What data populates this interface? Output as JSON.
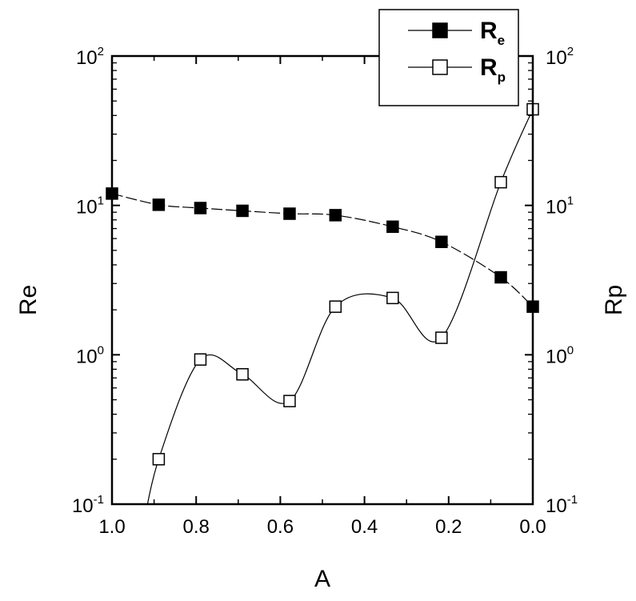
{
  "chart_data": {
    "type": "line",
    "xlabel": "A",
    "ylabel_left": "Re",
    "ylabel_right": "Rp",
    "xlim": [
      1.0,
      0.0
    ],
    "x_reversed": true,
    "ylim": [
      0.1,
      100
    ],
    "y_scale": "log",
    "x_ticks": [
      "1.0",
      "0.8",
      "0.6",
      "0.4",
      "0.2",
      "0.0"
    ],
    "y_ticks": [
      {
        "base": "10",
        "exp": "-1"
      },
      {
        "base": "10",
        "exp": "0"
      },
      {
        "base": "10",
        "exp": "1"
      },
      {
        "base": "10",
        "exp": "2"
      }
    ],
    "legend": {
      "position": "top-right",
      "entries": [
        {
          "base": "R",
          "sub": "e",
          "marker": "filled-square"
        },
        {
          "base": "R",
          "sub": "p",
          "marker": "open-square"
        }
      ]
    },
    "series": [
      {
        "id": "Re",
        "marker": "filled-square",
        "curve": "dashed",
        "x": [
          1.0,
          0.889,
          0.79,
          0.69,
          0.578,
          0.469,
          0.333,
          0.217,
          0.076,
          0.0
        ],
        "y": [
          12,
          10.1,
          9.6,
          9.2,
          8.8,
          8.6,
          7.2,
          5.7,
          3.3,
          2.1
        ]
      },
      {
        "id": "Rp",
        "marker": "open-square",
        "curve": "solid",
        "x": [
          0.889,
          0.79,
          0.69,
          0.578,
          0.469,
          0.333,
          0.217,
          0.076,
          0.0
        ],
        "y": [
          0.2,
          0.93,
          0.74,
          0.49,
          2.1,
          2.4,
          1.3,
          14.3,
          44
        ]
      }
    ]
  }
}
